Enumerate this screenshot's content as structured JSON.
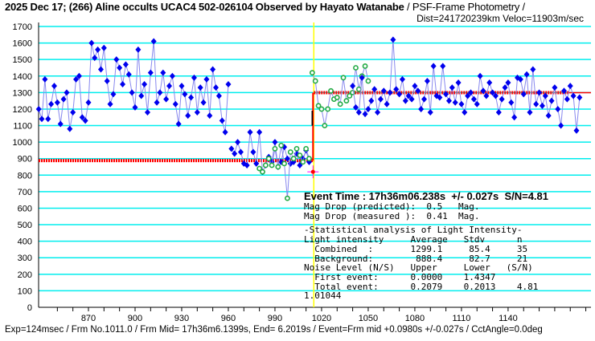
{
  "title": "2025 Dec 17; (266) Aline occults UCAC4 502-026104 Observed by Hayato Watanabe",
  "title_suffix": " / PSF-Frame Photometry /",
  "subtitle": "Dist=241720239km Veloc=11903m/sec",
  "footer": "Exp=124msec / Frm No.1011.0 / Frm Mid= 17h36m6.1399s,  End= 6.2019s / Event=Frm mid +0.0980s +/-0.027s / CctAngle=0.0deg",
  "stats": {
    "event_time": "Event Time : 17h36m06.238s  +/- 0.027s  S/N=4.81",
    "lines": [
      "Mag Drop (predicted):  0.5   Mag.",
      "Mag Drop (measured ):  0.41  Mag.",
      "-Statistical analysis of Light Intensity-",
      "Light intensity     Average   Stdv      n",
      "  Combined  :       1299.1     85.4     35",
      "  Background:        888.4     82.7     21",
      "Noise Level (N/S)   Upper     Lower   (S/N)",
      "  First event:      0.0000    1.4347",
      "  Total event:      0.2079    0.2013    4.81",
      "1.01044"
    ]
  },
  "chart_data": {
    "type": "line",
    "xlabel": "",
    "ylabel": "",
    "xlim": [
      838,
      1193
    ],
    "ylim": [
      0,
      1700
    ],
    "yticks": [
      0,
      100,
      200,
      300,
      400,
      500,
      600,
      700,
      800,
      900,
      1000,
      1100,
      1200,
      1300,
      1400,
      1500,
      1600,
      1700
    ],
    "xticks": [
      870,
      900,
      930,
      960,
      990,
      1020,
      1050,
      1080,
      1110,
      1140
    ],
    "grid": true,
    "event_frame": 1015,
    "background_level": 888.4,
    "combined_level": 1299.1,
    "event_marker_value": 820,
    "event_errorbar": [
      1100,
      1190
    ],
    "colors": {
      "target": "#0000ee",
      "line": "#8888ee",
      "comparison": "#22aa44",
      "level": "#ff0000",
      "event": "#ffff00",
      "grid": "#00eeee",
      "marker": "#ff00ff"
    },
    "series": [
      {
        "name": "target-before",
        "x_start": 838,
        "x_step": 2,
        "values": [
          1200,
          1140,
          1380,
          1140,
          1230,
          1340,
          1240,
          1110,
          1260,
          1300,
          1080,
          1180,
          1380,
          1400,
          1150,
          1130,
          1240,
          1600,
          1510,
          1560,
          1440,
          1570,
          1370,
          1230,
          1290,
          1500,
          1450,
          1350,
          1470,
          1410,
          1300,
          1210,
          1560,
          1280,
          1350,
          1180,
          1420,
          1610,
          1240,
          1300,
          1420,
          1260,
          1340,
          1400,
          1230,
          1110,
          1340,
          1290,
          1160,
          1270,
          1390,
          1180,
          1330,
          1240,
          1380,
          1160,
          1440,
          1330,
          1280,
          1130,
          1060,
          1350
        ]
      },
      {
        "name": "target-occulted",
        "x_start": 962,
        "x_step": 2,
        "values": [
          960,
          930,
          1000,
          940,
          870,
          860,
          1060,
          940,
          870,
          1060,
          820,
          860,
          910,
          880,
          1000,
          850,
          880,
          970,
          900,
          870,
          880,
          930,
          860,
          900,
          950,
          880
        ]
      },
      {
        "name": "comparison-1",
        "x_start": 980,
        "x_step": 2,
        "values": [
          840,
          820,
          860,
          900,
          860,
          960,
          850,
          980,
          870,
          660,
          940,
          900,
          960,
          920,
          880,
          960,
          900
        ]
      },
      {
        "name": "comparison-2",
        "x_start": 1014,
        "x_step": 2,
        "values": [
          1420,
          1370,
          1220,
          1200,
          1100,
          1200,
          1310,
          1260,
          1270,
          1230,
          1390,
          1250,
          1280,
          1300,
          1450,
          1320,
          1400,
          1460,
          1370
        ]
      },
      {
        "name": "target-after",
        "x_start": 1040,
        "x_step": 2,
        "values": [
          1340,
          1210,
          1180,
          1390,
          1170,
          1200,
          1250,
          1320,
          1180,
          1260,
          1310,
          1230,
          1300,
          1620,
          1320,
          1290,
          1380,
          1250,
          1280,
          1260,
          1340,
          1310,
          1200,
          1260,
          1370,
          1180,
          1460,
          1280,
          1270,
          1460,
          1290,
          1250,
          1330,
          1240,
          1360,
          1230,
          1180,
          1280,
          1300,
          1260,
          1230,
          1400,
          1310,
          1280,
          1360,
          1300,
          1280,
          1180,
          1260,
          1330,
          1360,
          1240,
          1150,
          1390,
          1380,
          1290,
          1410,
          1180,
          1440,
          1230,
          1300,
          1220,
          1280,
          1160,
          1250,
          1330,
          1200,
          1100,
          1310,
          1260,
          1340,
          1280,
          1070,
          1270
        ]
      }
    ]
  }
}
